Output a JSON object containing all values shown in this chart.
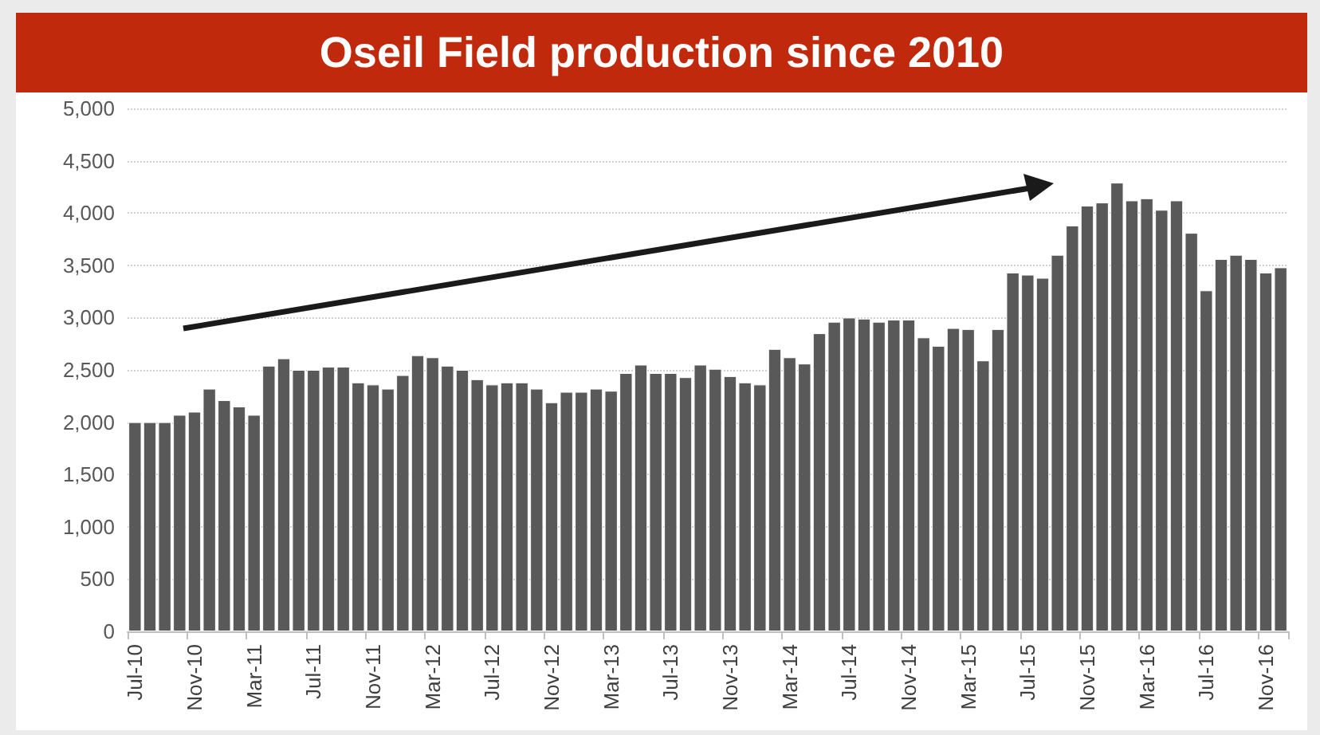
{
  "chart_data": {
    "type": "bar",
    "title": "Oseil Field production since 2010",
    "categories": [
      "Jul-10",
      null,
      null,
      null,
      "Nov-10",
      null,
      null,
      null,
      "Mar-11",
      null,
      null,
      null,
      "Jul-11",
      null,
      null,
      null,
      "Nov-11",
      null,
      null,
      null,
      "Mar-12",
      null,
      null,
      null,
      "Jul-12",
      null,
      null,
      null,
      "Nov-12",
      null,
      null,
      null,
      "Mar-13",
      null,
      null,
      null,
      "Jul-13",
      null,
      null,
      null,
      "Nov-13",
      null,
      null,
      null,
      "Mar-14",
      null,
      null,
      null,
      "Jul-14",
      null,
      null,
      null,
      "Nov-14",
      null,
      null,
      null,
      "Mar-15",
      null,
      null,
      null,
      "Jul-15",
      null,
      null,
      null,
      "Nov-15",
      null,
      null,
      null,
      "Mar-16",
      null,
      null,
      null,
      "Jul-16",
      null,
      null,
      null,
      "Nov-16",
      null
    ],
    "values": [
      2000,
      2000,
      2000,
      2070,
      2100,
      2320,
      2210,
      2150,
      2070,
      2540,
      2610,
      2500,
      2500,
      2530,
      2530,
      2380,
      2360,
      2320,
      2450,
      2640,
      2620,
      2540,
      2500,
      2410,
      2360,
      2380,
      2380,
      2320,
      2190,
      2290,
      2290,
      2320,
      2300,
      2470,
      2550,
      2470,
      2470,
      2430,
      2550,
      2510,
      2440,
      2380,
      2360,
      2700,
      2620,
      2560,
      2850,
      2960,
      3000,
      2990,
      2960,
      2980,
      2980,
      2810,
      2730,
      2900,
      2890,
      2590,
      2890,
      3430,
      3410,
      3380,
      3600,
      3880,
      4070,
      4100,
      4290,
      4120,
      4140,
      4030,
      4120,
      3810,
      3260,
      3560,
      3600,
      3560,
      3430,
      3480
    ],
    "color": "#595959",
    "ylim": [
      0,
      5000
    ],
    "yticks": [
      {
        "value": 0,
        "label": "0"
      },
      {
        "value": 500,
        "label": "500"
      },
      {
        "value": 1000,
        "label": "1,000"
      },
      {
        "value": 1500,
        "label": "1,500"
      },
      {
        "value": 2000,
        "label": "2,000"
      },
      {
        "value": 2500,
        "label": "2,500"
      },
      {
        "value": 3000,
        "label": "3,000"
      },
      {
        "value": 3500,
        "label": "3,500"
      },
      {
        "value": 4000,
        "label": "4,000"
      },
      {
        "value": 4500,
        "label": "4,500"
      },
      {
        "value": 5000,
        "label": "5,000"
      }
    ],
    "grid": "y"
  }
}
